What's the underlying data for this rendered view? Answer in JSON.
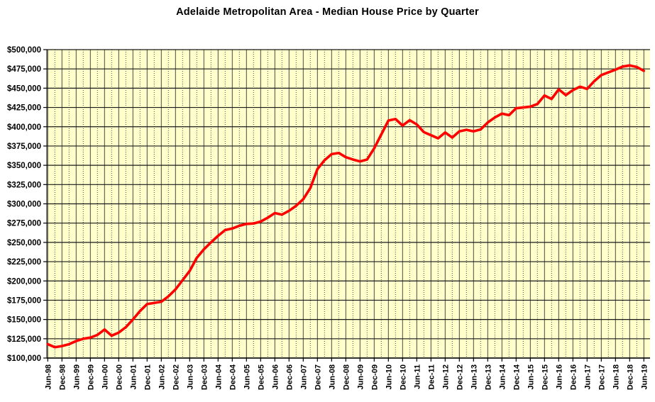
{
  "title": "Adelaide Metropolitan Area - Median House Price by Quarter",
  "colors": {
    "line": "#FE0000",
    "plot_bg": "#FFFFCB",
    "grid_major": "#1A1A1A",
    "grid_vertical": "#4A4A4A",
    "axis": "#000000",
    "tick_text": "#000000",
    "page_bg": "#FFFFFF"
  },
  "chart_data": {
    "type": "line",
    "title": "Adelaide Metropolitan Area - Median House Price by Quarter",
    "xlabel": "",
    "ylabel": "",
    "frequency": "quarterly",
    "legend": "none",
    "grid": "on",
    "ylim": [
      100000,
      500000
    ],
    "y_tick_step": 25000,
    "y_tick_labels": [
      "$500,000",
      "$475,000",
      "$450,000",
      "$425,000",
      "$400,000",
      "$375,000",
      "$350,000",
      "$325,000",
      "$300,000",
      "$275,000",
      "$250,000",
      "$225,000",
      "$200,000",
      "$175,000",
      "$150,000",
      "$125,000",
      "$100,000"
    ],
    "x_tick_labels": [
      "Jun-98",
      "Dec-98",
      "Jun-99",
      "Dec-99",
      "Jun-00",
      "Dec-00",
      "Jun-01",
      "Dec-01",
      "Jun-02",
      "Dec-02",
      "Jun-03",
      "Dec-03",
      "Jun-04",
      "Dec-04",
      "Jun-05",
      "Dec-05",
      "Jun-06",
      "Dec-06",
      "Jun-07",
      "Dec-07",
      "Jun-08",
      "Dec-08",
      "Jun-09",
      "Dec-09",
      "Jun-10",
      "Dec-10",
      "Jun-11",
      "Dec-11",
      "Jun-12",
      "Dec-12",
      "Jun-13",
      "Dec-13",
      "Jun-14",
      "Dec-14",
      "Jun-15",
      "Dec-15",
      "Jun-16",
      "Dec-16",
      "Jun-17",
      "Dec-17",
      "Jun-18",
      "Dec-18",
      "Jun-19"
    ],
    "x": [
      "Jun-98",
      "Sep-98",
      "Dec-98",
      "Mar-99",
      "Jun-99",
      "Sep-99",
      "Dec-99",
      "Mar-00",
      "Jun-00",
      "Sep-00",
      "Dec-00",
      "Mar-01",
      "Jun-01",
      "Sep-01",
      "Dec-01",
      "Mar-02",
      "Jun-02",
      "Sep-02",
      "Dec-02",
      "Mar-03",
      "Jun-03",
      "Sep-03",
      "Dec-03",
      "Mar-04",
      "Jun-04",
      "Sep-04",
      "Dec-04",
      "Mar-05",
      "Jun-05",
      "Sep-05",
      "Dec-05",
      "Mar-06",
      "Jun-06",
      "Sep-06",
      "Dec-06",
      "Mar-07",
      "Jun-07",
      "Sep-07",
      "Dec-07",
      "Mar-08",
      "Jun-08",
      "Sep-08",
      "Dec-08",
      "Mar-09",
      "Jun-09",
      "Sep-09",
      "Dec-09",
      "Mar-10",
      "Jun-10",
      "Sep-10",
      "Dec-10",
      "Mar-11",
      "Jun-11",
      "Sep-11",
      "Dec-11",
      "Mar-12",
      "Jun-12",
      "Sep-12",
      "Dec-12",
      "Mar-13",
      "Jun-13",
      "Sep-13",
      "Dec-13",
      "Mar-14",
      "Jun-14",
      "Sep-14",
      "Dec-14",
      "Mar-15",
      "Jun-15",
      "Sep-15",
      "Dec-15",
      "Mar-16",
      "Jun-16",
      "Sep-16",
      "Dec-16",
      "Mar-17",
      "Jun-17",
      "Sep-17",
      "Dec-17",
      "Mar-18",
      "Jun-18",
      "Sep-18",
      "Dec-18",
      "Mar-19",
      "Jun-19"
    ],
    "series": [
      {
        "name": "Median House Price",
        "values": [
          118000,
          114000,
          115500,
          118000,
          122000,
          125000,
          126500,
          130000,
          137000,
          129000,
          133000,
          140000,
          150000,
          161000,
          170000,
          171500,
          173000,
          180000,
          189000,
          201000,
          213000,
          230000,
          241000,
          250000,
          258500,
          266000,
          268000,
          271500,
          274000,
          274500,
          277000,
          282000,
          288000,
          286000,
          291000,
          297500,
          306000,
          320500,
          345000,
          356500,
          364500,
          366000,
          360500,
          357500,
          355000,
          357500,
          372000,
          390000,
          408000,
          410000,
          401500,
          408500,
          403000,
          393000,
          389000,
          385000,
          392500,
          386000,
          394000,
          396000,
          394000,
          396500,
          405500,
          412000,
          417000,
          415000,
          424000,
          425000,
          426000,
          429500,
          440500,
          436000,
          448500,
          441000,
          447500,
          452000,
          449000,
          459000,
          467000,
          470500,
          474000,
          478000,
          479500,
          477500,
          472500
        ]
      }
    ]
  }
}
